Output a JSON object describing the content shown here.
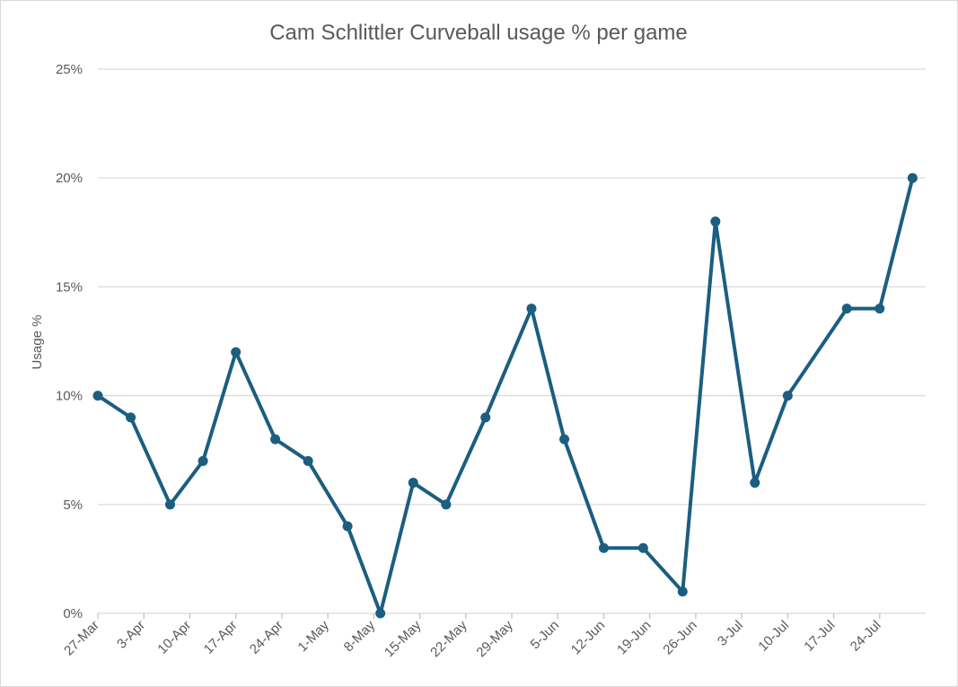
{
  "chart_data": {
    "type": "line",
    "title": "Cam Schlittler Curveball usage % per game",
    "xlabel": "",
    "ylabel": "Usage %",
    "ylim": [
      0,
      25
    ],
    "yticks": [
      "0%",
      "5%",
      "10%",
      "15%",
      "20%",
      "25%"
    ],
    "xlim": [
      "2025-03-27",
      "2025-07-31"
    ],
    "xticks": [
      "27-Mar",
      "3-Apr",
      "10-Apr",
      "17-Apr",
      "24-Apr",
      "1-May",
      "8-May",
      "15-May",
      "22-May",
      "29-May",
      "5-Jun",
      "12-Jun",
      "19-Jun",
      "26-Jun",
      "3-Jul",
      "10-Jul",
      "17-Jul",
      "24-Jul"
    ],
    "grid": "horizontal",
    "legend": "none",
    "colors": {
      "line": "#1b5e80",
      "grid": "#d9d9d9",
      "text": "#595959"
    },
    "series": [
      {
        "x": [
          "2025-03-27",
          "2025-04-01",
          "2025-04-07",
          "2025-04-12",
          "2025-04-17",
          "2025-04-23",
          "2025-04-28",
          "2025-05-04",
          "2025-05-09",
          "2025-05-14",
          "2025-05-19",
          "2025-05-25",
          "2025-06-01",
          "2025-06-06",
          "2025-06-12",
          "2025-06-18",
          "2025-06-24",
          "2025-06-29",
          "2025-07-05",
          "2025-07-10",
          "2025-07-19",
          "2025-07-24",
          "2025-07-29"
        ],
        "y": [
          10,
          9,
          5,
          7,
          12,
          8,
          7,
          4,
          0,
          6,
          5,
          9,
          14,
          8,
          3,
          3,
          1,
          18,
          6,
          10,
          14,
          14,
          20
        ]
      }
    ]
  }
}
